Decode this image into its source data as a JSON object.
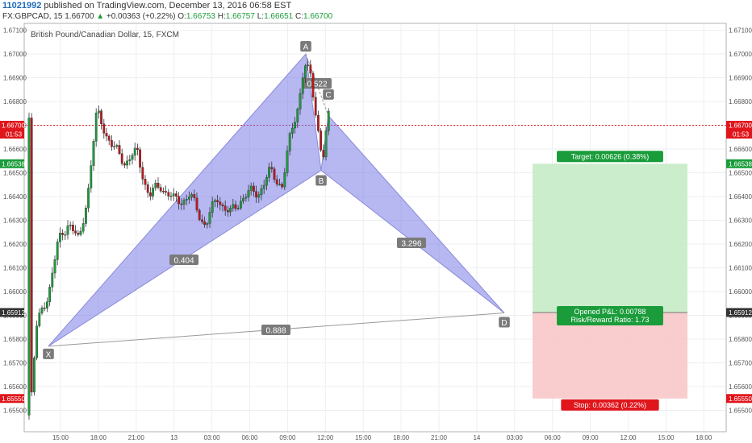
{
  "header": {
    "user": "11021992",
    "published": "published on TradingView.com, December 13, 2016 06:58 EST",
    "symbol": "FX:GBPCAD, 15",
    "last": "1.66700",
    "change_arrow": "▲",
    "change": "+0.00363 (+0.22%)",
    "o_label": "O:",
    "o": "1.66753",
    "h_label": "H:",
    "h": "1.66757",
    "l_label": "L:",
    "l": "1.66651",
    "c_label": "C:",
    "c": "1.66700"
  },
  "chart_data": {
    "type": "candlestick",
    "title": "British Pound/Canadian Dollar, 15, FXCM",
    "ylim": [
      1.6545,
      1.6715
    ],
    "y_ticks": [
      "1.67100",
      "1.67000",
      "1.66900",
      "1.66800",
      "1.66700",
      "1.66600",
      "1.66500",
      "1.66400",
      "1.66300",
      "1.66200",
      "1.66100",
      "1.66000",
      "1.65900",
      "1.65800",
      "1.65700",
      "1.65600",
      "1.65500"
    ],
    "x_ticks": [
      "15:00",
      "18:00",
      "21:00",
      "13",
      "03:00",
      "06:00",
      "09:00",
      "12:00",
      "15:00",
      "18:00",
      "21:00",
      "14",
      "03:00",
      "06:00",
      "09:00",
      "12:00",
      "15:00",
      "18:00"
    ],
    "price_labels": [
      {
        "value": 1.667,
        "text": "1.66700",
        "sub": "01:53",
        "color": "#e0161c"
      },
      {
        "value": 1.66538,
        "text": "1.66538",
        "color": "#1a9c3a"
      },
      {
        "value": 1.65912,
        "text": "1.65912",
        "color": "#333333"
      },
      {
        "value": 1.6555,
        "text": "1.65550",
        "color": "#e0161c"
      }
    ],
    "pattern": {
      "points": {
        "X": 1.6577,
        "A": 1.67,
        "B": 1.6651,
        "C": 1.6674,
        "D": 1.6591
      },
      "ratios": {
        "XB": "0.404",
        "AC": "0.522",
        "BD": "3.296",
        "XD": "0.888"
      }
    },
    "position": {
      "target_text": "Target: 0.00626 (0.38%)",
      "stop_text": "Stop: 0.00362 (0.22%)",
      "pnl_text": "Opened P&L: 0.00788",
      "rr_text": "Risk/Reward Ratio: 1.73",
      "entry": 1.65912,
      "target": 1.66538,
      "stop": 1.6555
    },
    "current_price": 1.667,
    "colors": {
      "up": "#1a9c3a",
      "down": "#c0151c",
      "pattern_fill": "#7b7be8",
      "target_fill": "#c5ebc5",
      "stop_fill": "#f8c8c8",
      "current": "#e0161c"
    }
  }
}
